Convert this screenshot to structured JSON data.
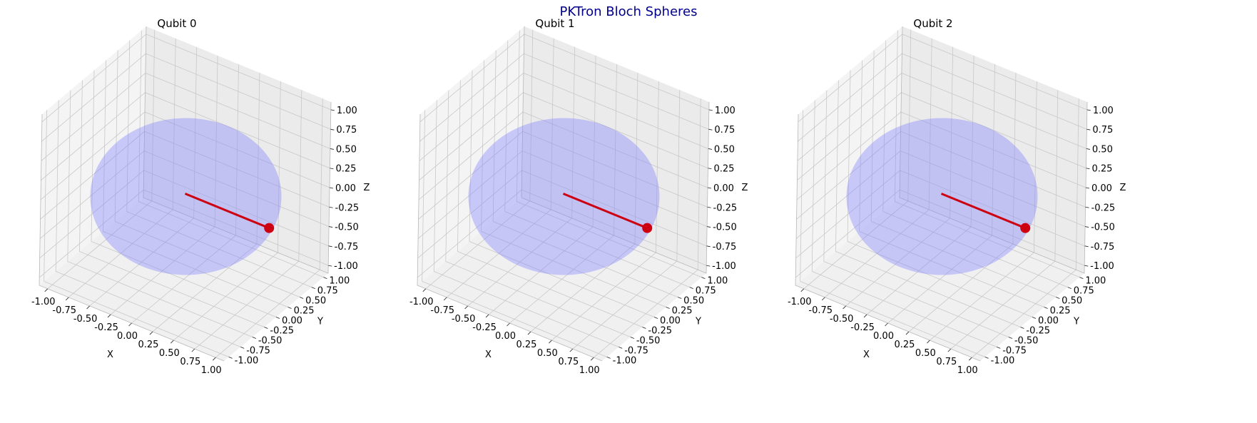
{
  "figure": {
    "title": "PKTron Bloch Spheres"
  },
  "colors": {
    "title": "#00008b",
    "vector": "#cc0011",
    "sphere": "#8080ff",
    "pane": "#f2f2f2",
    "grid": "#c8c8c8"
  },
  "chart_data": [
    {
      "type": "scatter",
      "title": "Qubit 0",
      "xlabel": "X",
      "ylabel": "Y",
      "zlabel": "Z",
      "xlim": [
        -1.1,
        1.1
      ],
      "ylim": [
        -1.1,
        1.1
      ],
      "zlim": [
        -1.1,
        1.1
      ],
      "xticks": [
        "-1.00",
        "-0.75",
        "-0.50",
        "-0.25",
        "0.00",
        "0.25",
        "0.50",
        "0.75",
        "1.00"
      ],
      "yticks": [
        "-1.00",
        "-0.75",
        "-0.50",
        "-0.25",
        "0.00",
        "0.25",
        "0.50",
        "0.75",
        "1.00"
      ],
      "zticks": [
        "-1.00",
        "-0.75",
        "-0.50",
        "-0.25",
        "0.00",
        "0.25",
        "0.50",
        "0.75",
        "1.00"
      ],
      "grid": true,
      "bloch_vector": {
        "x": 1.0,
        "y": 0.0,
        "z": 0.0
      },
      "sphere_radius": 1.0
    },
    {
      "type": "scatter",
      "title": "Qubit 1",
      "xlabel": "X",
      "ylabel": "Y",
      "zlabel": "Z",
      "xlim": [
        -1.1,
        1.1
      ],
      "ylim": [
        -1.1,
        1.1
      ],
      "zlim": [
        -1.1,
        1.1
      ],
      "xticks": [
        "-1.00",
        "-0.75",
        "-0.50",
        "-0.25",
        "0.00",
        "0.25",
        "0.50",
        "0.75",
        "1.00"
      ],
      "yticks": [
        "-1.00",
        "-0.75",
        "-0.50",
        "-0.25",
        "0.00",
        "0.25",
        "0.50",
        "0.75",
        "1.00"
      ],
      "zticks": [
        "-1.00",
        "-0.75",
        "-0.50",
        "-0.25",
        "0.00",
        "0.25",
        "0.50",
        "0.75",
        "1.00"
      ],
      "grid": true,
      "bloch_vector": {
        "x": 1.0,
        "y": 0.0,
        "z": 0.0
      },
      "sphere_radius": 1.0
    },
    {
      "type": "scatter",
      "title": "Qubit 2",
      "xlabel": "X",
      "ylabel": "Y",
      "zlabel": "Z",
      "xlim": [
        -1.1,
        1.1
      ],
      "ylim": [
        -1.1,
        1.1
      ],
      "zlim": [
        -1.1,
        1.1
      ],
      "xticks": [
        "-1.00",
        "-0.75",
        "-0.50",
        "-0.25",
        "0.00",
        "0.25",
        "0.50",
        "0.75",
        "1.00"
      ],
      "yticks": [
        "-1.00",
        "-0.75",
        "-0.50",
        "-0.25",
        "0.00",
        "0.25",
        "0.50",
        "0.75",
        "1.00"
      ],
      "zticks": [
        "-1.00",
        "-0.75",
        "-0.50",
        "-0.25",
        "0.00",
        "0.25",
        "0.50",
        "0.75",
        "1.00"
      ],
      "grid": true,
      "bloch_vector": {
        "x": 1.0,
        "y": 0.0,
        "z": 0.0
      },
      "sphere_radius": 1.0
    }
  ]
}
